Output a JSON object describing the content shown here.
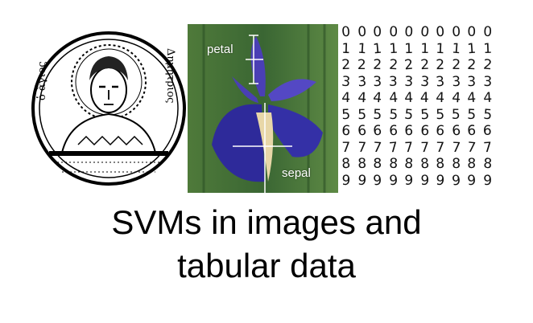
{
  "title": {
    "line1": "SVMs in images and",
    "line2": "tabular data"
  },
  "seal": {
    "left_text": "ὁ ἅγιος",
    "right_text": "Δημήτριος"
  },
  "iris": {
    "petal_label": "petal",
    "sepal_label": "sepal"
  },
  "digits": {
    "rows": [
      [
        "0",
        "0",
        "0",
        "0",
        "0",
        "0",
        "0",
        "0",
        "0",
        "0"
      ],
      [
        "1",
        "1",
        "1",
        "1",
        "1",
        "1",
        "1",
        "1",
        "1",
        "1"
      ],
      [
        "2",
        "2",
        "2",
        "2",
        "2",
        "2",
        "2",
        "2",
        "2",
        "2"
      ],
      [
        "3",
        "3",
        "3",
        "3",
        "3",
        "3",
        "3",
        "3",
        "3",
        "3"
      ],
      [
        "4",
        "4",
        "4",
        "4",
        "4",
        "4",
        "4",
        "4",
        "4",
        "4"
      ],
      [
        "5",
        "5",
        "5",
        "5",
        "5",
        "5",
        "5",
        "5",
        "5",
        "5"
      ],
      [
        "6",
        "6",
        "6",
        "6",
        "6",
        "6",
        "6",
        "6",
        "6",
        "6"
      ],
      [
        "7",
        "7",
        "7",
        "7",
        "7",
        "7",
        "7",
        "7",
        "7",
        "7"
      ],
      [
        "8",
        "8",
        "8",
        "8",
        "8",
        "8",
        "8",
        "8",
        "8",
        "8"
      ],
      [
        "9",
        "9",
        "9",
        "9",
        "9",
        "9",
        "9",
        "9",
        "9",
        "9"
      ]
    ]
  }
}
